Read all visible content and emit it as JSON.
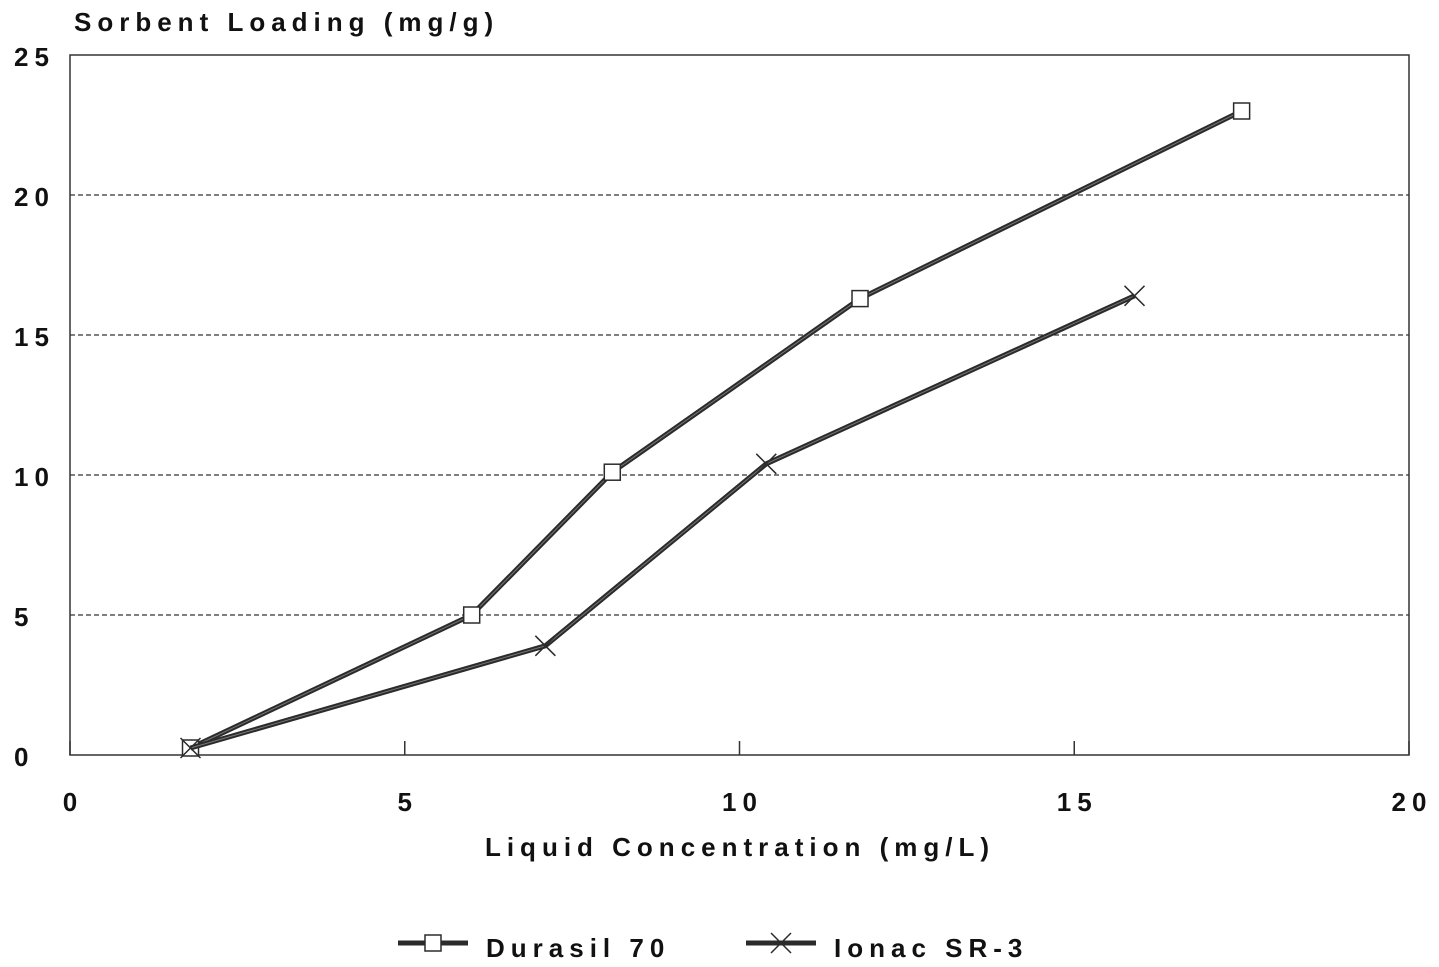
{
  "chart_data": {
    "type": "line",
    "title": "Sorbent Loading (mg/g)",
    "x_label": "Liquid Concentration (mg/L)",
    "xlim": [
      0,
      20
    ],
    "xticks": [
      0,
      5,
      10,
      15,
      20
    ],
    "ylim": [
      0,
      25
    ],
    "yticks": [
      0,
      5,
      10,
      15,
      20,
      25
    ],
    "grid": true,
    "legend": "bottom",
    "series": [
      {
        "name": "Durasil 70",
        "color": "#2b2b2b",
        "marker": "square",
        "x": [
          1.8,
          6.0,
          8.1,
          11.8,
          17.5
        ],
        "values": [
          0.25,
          5.0,
          10.1,
          16.3,
          23.0
        ]
      },
      {
        "name": "Ionac SR-3",
        "color": "#2b2b2b",
        "marker": "x",
        "x": [
          1.8,
          7.1,
          10.4,
          15.9
        ],
        "values": [
          0.25,
          3.9,
          10.4,
          16.4
        ]
      }
    ]
  }
}
